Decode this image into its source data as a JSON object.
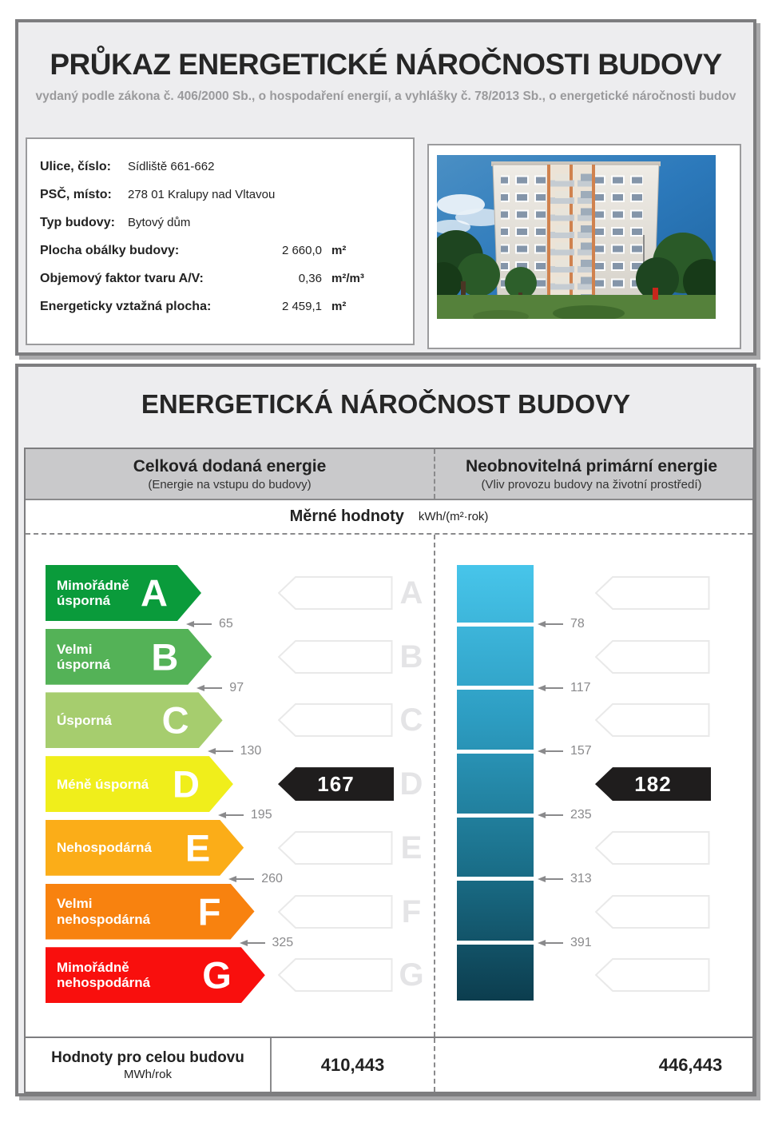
{
  "header": {
    "title": "PRŮKAZ ENERGETICKÉ NÁROČNOSTI BUDOVY",
    "subtitle": "vydaný podle zákona č. 406/2000 Sb., o hospodaření energií, a vyhlášky č. 78/2013 Sb., o energetické náročnosti budov"
  },
  "building_info": {
    "rows": [
      {
        "label": "Ulice, číslo:",
        "value": "Sídliště 661-662"
      },
      {
        "label": "PSČ, místo:",
        "value": "278 01 Kralupy nad Vltavou"
      },
      {
        "label": "Typ budovy:",
        "value": "Bytový dům"
      },
      {
        "label": "Plocha obálky budovy:",
        "value": "2 660,0",
        "unit": "m²"
      },
      {
        "label": "Objemový faktor tvaru A/V:",
        "value": "0,36",
        "unit": "m²/m³"
      },
      {
        "label": "Energeticky vztažná plocha:",
        "value": "2 459,1",
        "unit": "m²"
      }
    ]
  },
  "energy": {
    "title": "ENERGETICKÁ NÁROČNOST BUDOVY",
    "left_column": {
      "title": "Celková dodaná energie",
      "subtitle": "(Energie na vstupu do budovy)"
    },
    "right_column": {
      "title": "Neobnovitelná primární energie",
      "subtitle": "(Vliv provozu budovy na životní prostředí)"
    },
    "units_label": "Měrné hodnoty",
    "units_value": "kWh/(m²·rok)",
    "scale": {
      "classes": [
        {
          "letter": "A",
          "label": "Mimořádně\núsporná",
          "color": "#0a9b3b",
          "left_threshold": "65",
          "right_threshold": "78"
        },
        {
          "letter": "B",
          "label": "Velmi\núsporná",
          "color": "#54b257",
          "left_threshold": "97",
          "right_threshold": "117"
        },
        {
          "letter": "C",
          "label": "Úsporná",
          "color": "#a6cd6e",
          "left_threshold": "130",
          "right_threshold": "157"
        },
        {
          "letter": "D",
          "label": "Méně úsporná",
          "color": "#f0ee1b",
          "left_threshold": "195",
          "right_threshold": "235"
        },
        {
          "letter": "E",
          "label": "Nehospodárná",
          "color": "#fbad18",
          "left_threshold": "260",
          "right_threshold": "313"
        },
        {
          "letter": "F",
          "label": "Velmi\nnehospodárná",
          "color": "#f8820f",
          "left_threshold": "325",
          "right_threshold": "391"
        },
        {
          "letter": "G",
          "label": "Mimořádně\nnehospodárná",
          "color": "#f90f0d"
        }
      ],
      "left_rating": {
        "value": "167",
        "class": "D"
      },
      "right_rating": {
        "value": "182",
        "class": "D"
      }
    },
    "totals": {
      "label": "Hodnoty pro celou budovu",
      "unit": "MWh/rok",
      "left_value": "410,443",
      "right_value": "446,443"
    }
  },
  "colors": {
    "panel_bg": "#ededef",
    "panel_border": "#7d7d7f",
    "header_band_bg": "#c9c9cb",
    "rating_arrow": "#1f1d1d",
    "tick": "#8a8a8c",
    "ghost_outline": "#e9e9e9",
    "ghost_letter": "#e4e4e6",
    "bar_top": "#47c5ea",
    "bar_bottom": "#0c3d4e"
  },
  "chart_data": {
    "type": "bar",
    "title": "ENERGETICKÁ NÁROČNOST BUDOVY",
    "classes": [
      "A",
      "B",
      "C",
      "D",
      "E",
      "F",
      "G"
    ],
    "series": [
      {
        "name": "Celková dodaná energie",
        "unit": "kWh/(m²·rok)",
        "value": 167,
        "class": "D",
        "thresholds": [
          65,
          97,
          130,
          195,
          260,
          325
        ],
        "total": "410,443 MWh/rok"
      },
      {
        "name": "Neobnovitelná primární energie",
        "unit": "kWh/(m²·rok)",
        "value": 182,
        "class": "D",
        "thresholds": [
          78,
          117,
          157,
          235,
          313,
          391
        ],
        "total": "446,443 MWh/rok"
      }
    ]
  }
}
